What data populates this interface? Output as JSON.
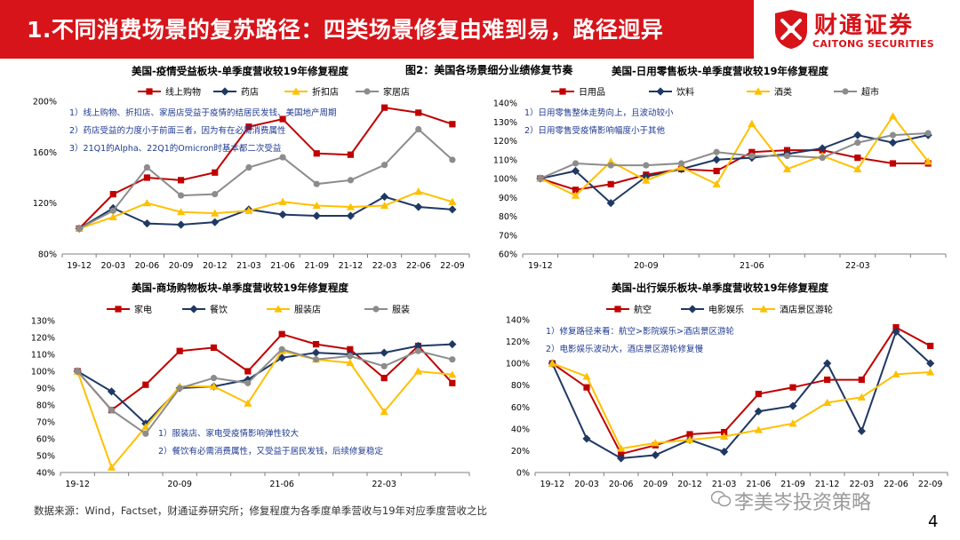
{
  "header": {
    "title": "1.不同消费场景的复苏路径：四类场景修复由难到易，路径迥异",
    "logo_cn": "财通证券",
    "logo_en": "CAITONG SECURITIES"
  },
  "figure_title": "图2：美国各场景细分业绩修复节奏",
  "source": "数据来源：Wind，Factset，财通证券研究所；修复程度为各季度单季营收与19年对应季度营收之比",
  "watermark": "李美岑投资策略",
  "page_number": "4",
  "chart_data": [
    {
      "id": "c1",
      "type": "line",
      "title": "美国-疫情受益板块-单季度营收较19年修复程度",
      "categories": [
        "19-12",
        "20-03",
        "20-06",
        "20-09",
        "20-12",
        "21-03",
        "21-06",
        "21-09",
        "21-12",
        "22-03",
        "22-06",
        "22-09"
      ],
      "xticks": [
        "19-12",
        "20-03",
        "20-06",
        "20-09",
        "20-12",
        "21-03",
        "21-06",
        "21-09",
        "21-12",
        "22-03",
        "22-06",
        "22-09"
      ],
      "ylim": [
        80,
        200
      ],
      "yticks": [
        80,
        120,
        160,
        200
      ],
      "yformat": "pct0",
      "series": [
        {
          "name": "线上购物",
          "color": "#c00000",
          "marker": "square",
          "values": [
            100,
            127,
            140,
            138,
            144,
            180,
            186,
            159,
            158,
            195,
            191,
            182
          ]
        },
        {
          "name": "药店",
          "color": "#1f3864",
          "marker": "diamond",
          "values": [
            100,
            116,
            104,
            103,
            105,
            115,
            111,
            110,
            110,
            125,
            117,
            115
          ]
        },
        {
          "name": "折扣店",
          "color": "#ffc000",
          "marker": "triangle",
          "values": [
            100,
            109,
            120,
            113,
            112,
            114,
            121,
            118,
            117,
            118,
            129,
            121
          ]
        },
        {
          "name": "家居店",
          "color": "#8c8c8c",
          "marker": "circle",
          "values": [
            100,
            114,
            148,
            126,
            127,
            148,
            156,
            135,
            138,
            150,
            178,
            154
          ]
        }
      ],
      "notes": [
        "1）线上购物、折扣店、家居店受益于疫情的结居民发钱、美国地产周期",
        "2）药店受益的力度小于前面三者，因为有在必需消费属性",
        "3）21Q1的Alpha、22Q1的Omicron时基本都二次受益"
      ]
    },
    {
      "id": "c2",
      "type": "line",
      "title": "美国-日用零售板块-单季度营收较19年修复程度",
      "categories": [
        "19-12",
        "20-03",
        "20-06",
        "20-09",
        "20-12",
        "21-03",
        "21-06",
        "21-09",
        "21-12",
        "22-03",
        "22-06",
        "22-09"
      ],
      "xticks": [
        "19-12",
        "",
        "",
        "20-09",
        "",
        "",
        "21-06",
        "",
        "",
        "22-03",
        "",
        ""
      ],
      "ylim": [
        60,
        140
      ],
      "yticks": [
        60,
        70,
        80,
        90,
        100,
        110,
        120,
        130,
        140
      ],
      "yformat": "pct0",
      "series": [
        {
          "name": "日用品",
          "color": "#c00000",
          "marker": "square",
          "values": [
            100,
            94,
            97,
            102,
            105,
            104,
            114,
            115,
            115,
            111,
            108,
            108
          ]
        },
        {
          "name": "饮料",
          "color": "#1f3864",
          "marker": "diamond",
          "values": [
            100,
            104,
            87,
            101,
            105,
            110,
            111,
            113,
            116,
            123,
            119,
            123
          ]
        },
        {
          "name": "酒类",
          "color": "#ffc000",
          "marker": "triangle",
          "values": [
            100,
            91,
            109,
            99,
            106,
            97,
            129,
            105,
            112,
            105,
            133,
            109
          ]
        },
        {
          "name": "超市",
          "color": "#8c8c8c",
          "marker": "circle",
          "values": [
            100,
            108,
            107,
            107,
            108,
            114,
            112,
            112,
            111,
            119,
            123,
            124
          ]
        }
      ],
      "notes": [
        "1）日用零售整体走势向上，且波动较小",
        "2）日用零售受疫情影响幅度小于其他"
      ]
    },
    {
      "id": "c3",
      "type": "line",
      "title": "美国-商场购物板块-单季度营收较19年修复程度",
      "categories": [
        "19-12",
        "20-03",
        "20-06",
        "20-09",
        "20-12",
        "21-03",
        "21-06",
        "21-09",
        "21-12",
        "22-03",
        "22-06",
        "22-09"
      ],
      "xticks": [
        "19-12",
        "",
        "",
        "20-09",
        "",
        "",
        "21-06",
        "",
        "",
        "22-03",
        "",
        ""
      ],
      "ylim": [
        40,
        130
      ],
      "yticks": [
        40,
        50,
        60,
        70,
        80,
        90,
        100,
        110,
        120,
        130
      ],
      "yformat": "pct0",
      "series": [
        {
          "name": "家电",
          "color": "#c00000",
          "marker": "square",
          "values": [
            100,
            77,
            92,
            112,
            114,
            100,
            122,
            116,
            113,
            96,
            115,
            93
          ]
        },
        {
          "name": "餐饮",
          "color": "#1f3864",
          "marker": "diamond",
          "values": [
            100,
            88,
            69,
            90,
            91,
            95,
            108,
            111,
            110,
            111,
            115,
            116
          ]
        },
        {
          "name": "服装店",
          "color": "#ffc000",
          "marker": "triangle",
          "values": [
            100,
            43,
            67,
            91,
            91,
            81,
            112,
            107,
            105,
            76,
            100,
            98
          ]
        },
        {
          "name": "服装",
          "color": "#8c8c8c",
          "marker": "circle",
          "values": [
            100,
            77,
            63,
            90,
            96,
            93,
            113,
            107,
            109,
            103,
            112,
            107
          ]
        }
      ],
      "notes": [
        "1）服装店、家电受疫情影响弹性较大",
        "2）餐饮有必需消费属性，又受益于居民发钱，后续修复稳定"
      ]
    },
    {
      "id": "c4",
      "type": "line",
      "title": "美国-出行娱乐板块-单季度营收较19年修复程度",
      "categories": [
        "19-12",
        "20-03",
        "20-06",
        "20-09",
        "20-12",
        "21-03",
        "21-06",
        "21-09",
        "21-12",
        "22-03",
        "22-06",
        "22-09"
      ],
      "xticks": [
        "19-12",
        "20-03",
        "20-06",
        "20-09",
        "20-12",
        "21-03",
        "21-06",
        "21-09",
        "21-12",
        "22-03",
        "22-06",
        "22-09"
      ],
      "ylim": [
        0,
        140
      ],
      "yticks": [
        0,
        20,
        40,
        60,
        80,
        100,
        120,
        140
      ],
      "yformat": "pct0",
      "series": [
        {
          "name": "航空",
          "color": "#c00000",
          "marker": "square",
          "values": [
            100,
            78,
            17,
            25,
            35,
            37,
            72,
            78,
            85,
            85,
            133,
            116
          ]
        },
        {
          "name": "电影娱乐",
          "color": "#1f3864",
          "marker": "diamond",
          "values": [
            100,
            31,
            13,
            16,
            30,
            19,
            56,
            61,
            100,
            38,
            129,
            100
          ]
        },
        {
          "name": "酒店景区游轮",
          "color": "#ffc000",
          "marker": "triangle",
          "values": [
            100,
            88,
            22,
            27,
            30,
            33,
            39,
            45,
            64,
            69,
            90,
            92
          ]
        }
      ],
      "notes": [
        "1）修复路径来看：航空>影院娱乐>酒店景区游轮",
        "2）电影娱乐波动大，酒店景区游轮修复慢"
      ]
    }
  ]
}
